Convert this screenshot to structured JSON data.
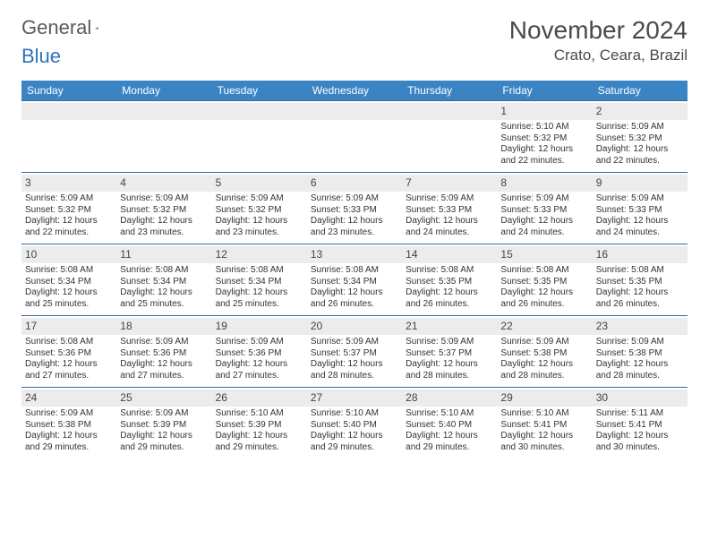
{
  "brand": {
    "word1": "General",
    "word2": "Blue"
  },
  "title": "November 2024",
  "location": "Crato, Ceara, Brazil",
  "colors": {
    "header_bg": "#3b84c4",
    "header_text": "#ffffff",
    "daynum_bg": "#ececec",
    "week_border": "#3b6a94",
    "body_text": "#333333",
    "brand_gray": "#5a5a5a",
    "brand_blue": "#2a74b8",
    "page_bg": "#ffffff"
  },
  "days_of_week": [
    "Sunday",
    "Monday",
    "Tuesday",
    "Wednesday",
    "Thursday",
    "Friday",
    "Saturday"
  ],
  "weeks": [
    [
      {
        "n": "",
        "empty": true
      },
      {
        "n": "",
        "empty": true
      },
      {
        "n": "",
        "empty": true
      },
      {
        "n": "",
        "empty": true
      },
      {
        "n": "",
        "empty": true
      },
      {
        "n": "1",
        "sunrise": "Sunrise: 5:10 AM",
        "sunset": "Sunset: 5:32 PM",
        "day1": "Daylight: 12 hours",
        "day2": "and 22 minutes."
      },
      {
        "n": "2",
        "sunrise": "Sunrise: 5:09 AM",
        "sunset": "Sunset: 5:32 PM",
        "day1": "Daylight: 12 hours",
        "day2": "and 22 minutes."
      }
    ],
    [
      {
        "n": "3",
        "sunrise": "Sunrise: 5:09 AM",
        "sunset": "Sunset: 5:32 PM",
        "day1": "Daylight: 12 hours",
        "day2": "and 22 minutes."
      },
      {
        "n": "4",
        "sunrise": "Sunrise: 5:09 AM",
        "sunset": "Sunset: 5:32 PM",
        "day1": "Daylight: 12 hours",
        "day2": "and 23 minutes."
      },
      {
        "n": "5",
        "sunrise": "Sunrise: 5:09 AM",
        "sunset": "Sunset: 5:32 PM",
        "day1": "Daylight: 12 hours",
        "day2": "and 23 minutes."
      },
      {
        "n": "6",
        "sunrise": "Sunrise: 5:09 AM",
        "sunset": "Sunset: 5:33 PM",
        "day1": "Daylight: 12 hours",
        "day2": "and 23 minutes."
      },
      {
        "n": "7",
        "sunrise": "Sunrise: 5:09 AM",
        "sunset": "Sunset: 5:33 PM",
        "day1": "Daylight: 12 hours",
        "day2": "and 24 minutes."
      },
      {
        "n": "8",
        "sunrise": "Sunrise: 5:09 AM",
        "sunset": "Sunset: 5:33 PM",
        "day1": "Daylight: 12 hours",
        "day2": "and 24 minutes."
      },
      {
        "n": "9",
        "sunrise": "Sunrise: 5:09 AM",
        "sunset": "Sunset: 5:33 PM",
        "day1": "Daylight: 12 hours",
        "day2": "and 24 minutes."
      }
    ],
    [
      {
        "n": "10",
        "sunrise": "Sunrise: 5:08 AM",
        "sunset": "Sunset: 5:34 PM",
        "day1": "Daylight: 12 hours",
        "day2": "and 25 minutes."
      },
      {
        "n": "11",
        "sunrise": "Sunrise: 5:08 AM",
        "sunset": "Sunset: 5:34 PM",
        "day1": "Daylight: 12 hours",
        "day2": "and 25 minutes."
      },
      {
        "n": "12",
        "sunrise": "Sunrise: 5:08 AM",
        "sunset": "Sunset: 5:34 PM",
        "day1": "Daylight: 12 hours",
        "day2": "and 25 minutes."
      },
      {
        "n": "13",
        "sunrise": "Sunrise: 5:08 AM",
        "sunset": "Sunset: 5:34 PM",
        "day1": "Daylight: 12 hours",
        "day2": "and 26 minutes."
      },
      {
        "n": "14",
        "sunrise": "Sunrise: 5:08 AM",
        "sunset": "Sunset: 5:35 PM",
        "day1": "Daylight: 12 hours",
        "day2": "and 26 minutes."
      },
      {
        "n": "15",
        "sunrise": "Sunrise: 5:08 AM",
        "sunset": "Sunset: 5:35 PM",
        "day1": "Daylight: 12 hours",
        "day2": "and 26 minutes."
      },
      {
        "n": "16",
        "sunrise": "Sunrise: 5:08 AM",
        "sunset": "Sunset: 5:35 PM",
        "day1": "Daylight: 12 hours",
        "day2": "and 26 minutes."
      }
    ],
    [
      {
        "n": "17",
        "sunrise": "Sunrise: 5:08 AM",
        "sunset": "Sunset: 5:36 PM",
        "day1": "Daylight: 12 hours",
        "day2": "and 27 minutes."
      },
      {
        "n": "18",
        "sunrise": "Sunrise: 5:09 AM",
        "sunset": "Sunset: 5:36 PM",
        "day1": "Daylight: 12 hours",
        "day2": "and 27 minutes."
      },
      {
        "n": "19",
        "sunrise": "Sunrise: 5:09 AM",
        "sunset": "Sunset: 5:36 PM",
        "day1": "Daylight: 12 hours",
        "day2": "and 27 minutes."
      },
      {
        "n": "20",
        "sunrise": "Sunrise: 5:09 AM",
        "sunset": "Sunset: 5:37 PM",
        "day1": "Daylight: 12 hours",
        "day2": "and 28 minutes."
      },
      {
        "n": "21",
        "sunrise": "Sunrise: 5:09 AM",
        "sunset": "Sunset: 5:37 PM",
        "day1": "Daylight: 12 hours",
        "day2": "and 28 minutes."
      },
      {
        "n": "22",
        "sunrise": "Sunrise: 5:09 AM",
        "sunset": "Sunset: 5:38 PM",
        "day1": "Daylight: 12 hours",
        "day2": "and 28 minutes."
      },
      {
        "n": "23",
        "sunrise": "Sunrise: 5:09 AM",
        "sunset": "Sunset: 5:38 PM",
        "day1": "Daylight: 12 hours",
        "day2": "and 28 minutes."
      }
    ],
    [
      {
        "n": "24",
        "sunrise": "Sunrise: 5:09 AM",
        "sunset": "Sunset: 5:38 PM",
        "day1": "Daylight: 12 hours",
        "day2": "and 29 minutes."
      },
      {
        "n": "25",
        "sunrise": "Sunrise: 5:09 AM",
        "sunset": "Sunset: 5:39 PM",
        "day1": "Daylight: 12 hours",
        "day2": "and 29 minutes."
      },
      {
        "n": "26",
        "sunrise": "Sunrise: 5:10 AM",
        "sunset": "Sunset: 5:39 PM",
        "day1": "Daylight: 12 hours",
        "day2": "and 29 minutes."
      },
      {
        "n": "27",
        "sunrise": "Sunrise: 5:10 AM",
        "sunset": "Sunset: 5:40 PM",
        "day1": "Daylight: 12 hours",
        "day2": "and 29 minutes."
      },
      {
        "n": "28",
        "sunrise": "Sunrise: 5:10 AM",
        "sunset": "Sunset: 5:40 PM",
        "day1": "Daylight: 12 hours",
        "day2": "and 29 minutes."
      },
      {
        "n": "29",
        "sunrise": "Sunrise: 5:10 AM",
        "sunset": "Sunset: 5:41 PM",
        "day1": "Daylight: 12 hours",
        "day2": "and 30 minutes."
      },
      {
        "n": "30",
        "sunrise": "Sunrise: 5:11 AM",
        "sunset": "Sunset: 5:41 PM",
        "day1": "Daylight: 12 hours",
        "day2": "and 30 minutes."
      }
    ]
  ]
}
